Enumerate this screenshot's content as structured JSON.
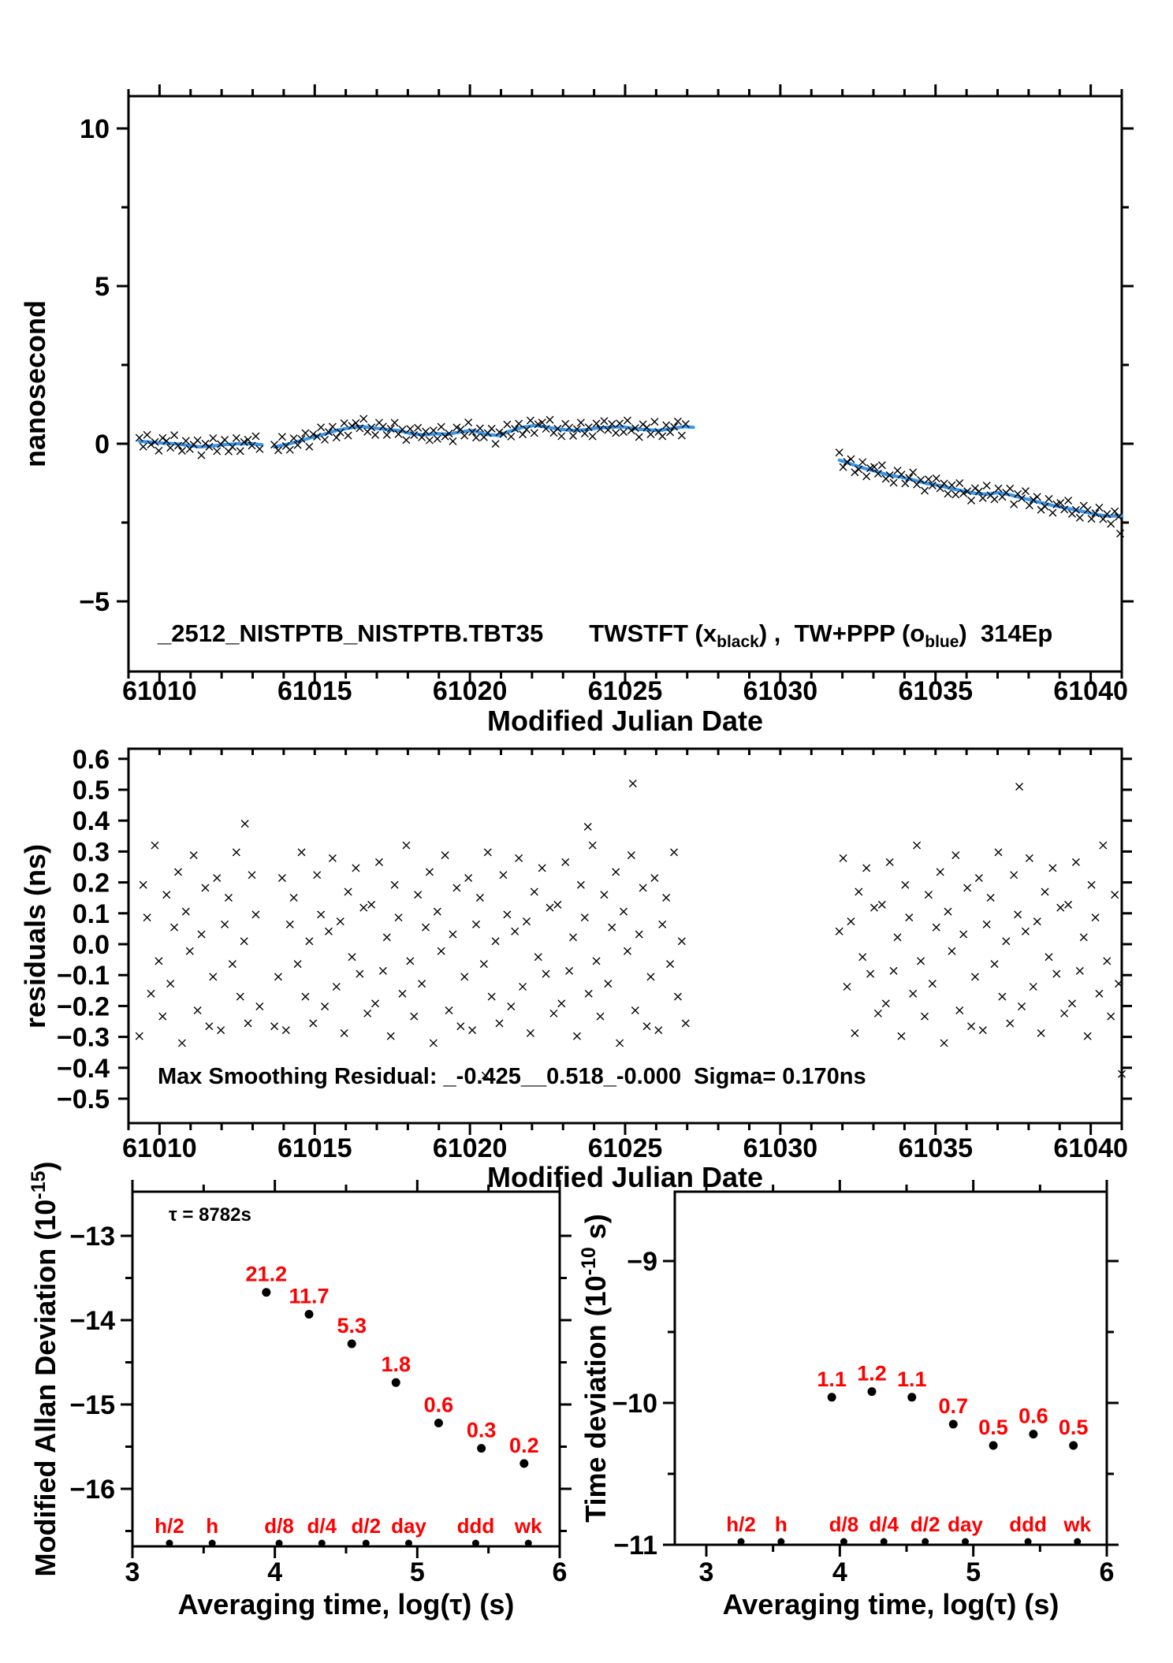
{
  "figure_title": {
    "part1": "_2512_NISTPTB_NISTPTB.TBT35",
    "part2": "TWSTFT (x",
    "part2_sub": "black",
    "part3": ") ,  TW+PPP (o",
    "part3_sub": "blue",
    "part4": ")  314Ep"
  },
  "annotations": {
    "smoothing_residual": "Max Smoothing Residual: _-0.425__0.518_-0.000  Sigma= 0.170ns",
    "tau": "τ = 8782s"
  },
  "colors": {
    "ink": "#000000",
    "accent_red": "#ff0000",
    "series_blue": "#3a96e8",
    "background": "#ffffff"
  },
  "chart_data": {
    "jitter_pattern": [
      0.4,
      -0.6,
      0.83,
      -0.27,
      0.07,
      -0.93,
      0.6,
      0.27,
      -0.5,
      1.0,
      -0.17,
      -0.73,
      0.5,
      -0.4,
      0.17,
      0.73,
      -1.0,
      0.33,
      -0.07,
      0.9,
      -0.67,
      0.1,
      0.57,
      -0.83,
      -0.33,
      0.67,
      -0.87,
      0.2,
      0.47,
      -0.2,
      0.93,
      -0.53,
      0.03,
      -0.8,
      0.7,
      0.3,
      -0.63,
      0.13,
      0.87,
      -0.43,
      0.23,
      -0.9,
      0.53,
      -0.13,
      0.77,
      -0.3,
      0.37,
      -0.7
    ],
    "phase_plot": {
      "type": "scatter",
      "xlabel": "Modified Julian Date",
      "ylabel": "nanosecond",
      "xlim": [
        61009,
        61041
      ],
      "ylim": [
        -7.2,
        11.0
      ],
      "xticks": [
        61010,
        61015,
        61020,
        61025,
        61030,
        61035,
        61040
      ],
      "xtick_minor_step": 1,
      "yticks": [
        10,
        5,
        0,
        -5
      ],
      "ytick_minor": [
        7.5,
        2.5,
        -2.5
      ],
      "series_black": {
        "name": "TWSTFT",
        "marker": "x",
        "segments": [
          {
            "x_start": 61009.35,
            "x_end": 61013.3,
            "x_step": 0.125,
            "jitter_amp": 0.27,
            "jitter_phase": 0
          },
          {
            "x_start": 61013.7,
            "x_end": 61027.0,
            "x_step": 0.125,
            "jitter_amp": 0.27,
            "jitter_phase": 7
          },
          {
            "x_start": 61031.9,
            "x_end": 61041.0,
            "x_step": 0.125,
            "jitter_amp": 0.27,
            "jitter_phase": 19
          }
        ],
        "extra_points": [
          [
            61040.95,
            -2.85
          ]
        ]
      },
      "series_blue": {
        "name": "TW+PPP",
        "marker": "o",
        "smoothed_segments": [
          [
            [
              61009.35,
              0.08
            ],
            [
              61009.7,
              0.05
            ],
            [
              61010.1,
              0.02
            ],
            [
              61010.5,
              0
            ],
            [
              61010.9,
              -0.05
            ],
            [
              61011.3,
              -0.1
            ],
            [
              61011.7,
              -0.07
            ],
            [
              61012.1,
              -0.03
            ],
            [
              61012.5,
              0
            ],
            [
              61012.9,
              0
            ],
            [
              61013.3,
              -0.03
            ]
          ],
          [
            [
              61013.7,
              -0.1
            ],
            [
              61014.1,
              -0.02
            ],
            [
              61014.5,
              0.08
            ],
            [
              61014.9,
              0.2
            ],
            [
              61015.3,
              0.3
            ],
            [
              61015.7,
              0.42
            ],
            [
              61016.1,
              0.5
            ],
            [
              61016.5,
              0.55
            ],
            [
              61016.9,
              0.5
            ],
            [
              61017.3,
              0.45
            ],
            [
              61017.7,
              0.42
            ],
            [
              61018.1,
              0.32
            ],
            [
              61018.5,
              0.28
            ],
            [
              61018.9,
              0.32
            ],
            [
              61019.3,
              0.3
            ],
            [
              61019.7,
              0.38
            ],
            [
              61020.1,
              0.42
            ],
            [
              61020.5,
              0.3
            ],
            [
              61020.9,
              0.26
            ],
            [
              61021.3,
              0.4
            ],
            [
              61021.7,
              0.52
            ],
            [
              61022.1,
              0.58
            ],
            [
              61022.5,
              0.52
            ],
            [
              61022.9,
              0.46
            ],
            [
              61023.3,
              0.42
            ],
            [
              61023.7,
              0.44
            ],
            [
              61024.1,
              0.5
            ],
            [
              61024.5,
              0.52
            ],
            [
              61024.9,
              0.54
            ],
            [
              61025.3,
              0.48
            ],
            [
              61025.7,
              0.44
            ],
            [
              61026.1,
              0.42
            ],
            [
              61026.5,
              0.48
            ],
            [
              61026.9,
              0.54
            ],
            [
              61027.2,
              0.52
            ]
          ],
          [
            [
              61031.9,
              -0.52
            ],
            [
              61032.3,
              -0.65
            ],
            [
              61032.7,
              -0.78
            ],
            [
              61033.1,
              -0.88
            ],
            [
              61033.5,
              -1
            ],
            [
              61033.9,
              -1.06
            ],
            [
              61034.3,
              -1.15
            ],
            [
              61034.7,
              -1.26
            ],
            [
              61035.1,
              -1.32
            ],
            [
              61035.5,
              -1.42
            ],
            [
              61035.9,
              -1.5
            ],
            [
              61036.3,
              -1.58
            ],
            [
              61036.7,
              -1.6
            ],
            [
              61037,
              -1.55
            ],
            [
              61037.4,
              -1.62
            ],
            [
              61037.8,
              -1.72
            ],
            [
              61038.2,
              -1.82
            ],
            [
              61038.6,
              -1.92
            ],
            [
              61039,
              -2
            ],
            [
              61039.4,
              -2.08
            ],
            [
              61039.8,
              -2.16
            ],
            [
              61040.2,
              -2.25
            ],
            [
              61040.6,
              -2.3
            ],
            [
              61041,
              -2.28
            ]
          ]
        ]
      }
    },
    "residuals_plot": {
      "type": "scatter",
      "xlabel": "Modified Julian Date",
      "ylabel": "residuals (ns)",
      "xlim": [
        61009,
        61041
      ],
      "ylim": [
        -0.58,
        0.63
      ],
      "xticks": [
        61010,
        61015,
        61020,
        61025,
        61030,
        61035,
        61040
      ],
      "xtick_minor_step": 1,
      "yticks": [
        0.6,
        0.5,
        0.4,
        0.3,
        0.2,
        0.1,
        0.0,
        -0.1,
        -0.2,
        -0.3,
        -0.4,
        -0.5
      ],
      "series": {
        "marker": "x",
        "segments": [
          {
            "x_start": 61009.35,
            "x_end": 61013.3,
            "x_step": 0.125,
            "jitter_amp": 0.32,
            "jitter_phase": 5
          },
          {
            "x_start": 61013.7,
            "x_end": 61027.0,
            "x_step": 0.125,
            "jitter_amp": 0.32,
            "jitter_phase": 23
          },
          {
            "x_start": 61031.9,
            "x_end": 61041.0,
            "x_step": 0.125,
            "jitter_amp": 0.32,
            "jitter_phase": 37
          }
        ],
        "extra_points": [
          [
            61020.5,
            -0.425
          ],
          [
            61025.25,
            0.52
          ],
          [
            61037.7,
            0.51
          ],
          [
            61041.0,
            -0.42
          ],
          [
            61012.75,
            0.39
          ],
          [
            61023.8,
            0.38
          ]
        ]
      }
    },
    "mdev_plot": {
      "type": "scatter",
      "xlabel": "Averaging time, log(τ) (s)",
      "ylabel_parts": {
        "pre": "Modified Allan Deviation (10",
        "sup": "-15",
        "post": ")"
      },
      "xlim": [
        3,
        6
      ],
      "ylim": [
        -16.68,
        -12.47
      ],
      "xticks": [
        3,
        4,
        5,
        6
      ],
      "xtick_minor": [
        3.5,
        4.5,
        5.5
      ],
      "yticks": [
        -13,
        -14,
        -15,
        -16
      ],
      "ytick_minor": [
        -13.5,
        -14.5,
        -15.5,
        -16.5
      ],
      "annotation": "τ = 8782s",
      "points": {
        "log_tau": [
          3.94,
          4.24,
          4.54,
          4.85,
          5.15,
          5.45,
          5.75
        ],
        "values_1e15": [
          21.2,
          11.7,
          5.3,
          1.8,
          0.6,
          0.3,
          0.2
        ],
        "labels": [
          "21.2",
          "11.7",
          "5.3",
          "1.8",
          "0.6",
          "0.3",
          "0.2"
        ],
        "log_y": [
          -13.67,
          -13.93,
          -14.28,
          -14.74,
          -15.22,
          -15.52,
          -15.7
        ]
      },
      "ref_marks": {
        "log_tau": [
          3.26,
          3.56,
          4.03,
          4.33,
          4.64,
          4.94,
          5.41,
          5.78
        ],
        "labels": [
          "h/2",
          "h",
          "d/8",
          "d/4",
          "d/2",
          "day",
          "ddd",
          "wk"
        ]
      }
    },
    "tdev_plot": {
      "type": "scatter",
      "xlabel": "Averaging time, log(τ) (s)",
      "ylabel_parts": {
        "pre": "Time deviation (10",
        "sup": "-10",
        "post": " s)"
      },
      "xlim": [
        3,
        6
      ],
      "ylim": [
        -11.0,
        -8.51
      ],
      "xticks": [
        3,
        4,
        5,
        6
      ],
      "xtick_minor": [
        3.5,
        4.5,
        5.5
      ],
      "yticks": [
        -9,
        -10,
        -11
      ],
      "ytick_minor": [
        -9.5,
        -10.5
      ],
      "points": {
        "log_tau": [
          3.94,
          4.24,
          4.54,
          4.85,
          5.15,
          5.45,
          5.75
        ],
        "values_1e10": [
          1.1,
          1.2,
          1.1,
          0.7,
          0.5,
          0.6,
          0.5
        ],
        "labels": [
          "1.1",
          "1.2",
          "1.1",
          "0.7",
          "0.5",
          "0.6",
          "0.5"
        ],
        "log_y": [
          -9.96,
          -9.92,
          -9.96,
          -10.15,
          -10.3,
          -10.22,
          -10.3
        ]
      },
      "ref_marks": {
        "log_tau": [
          3.26,
          3.56,
          4.03,
          4.33,
          4.64,
          4.94,
          5.41,
          5.78
        ],
        "labels": [
          "h/2",
          "h",
          "d/8",
          "d/4",
          "d/2",
          "day",
          "ddd",
          "wk"
        ]
      }
    }
  }
}
